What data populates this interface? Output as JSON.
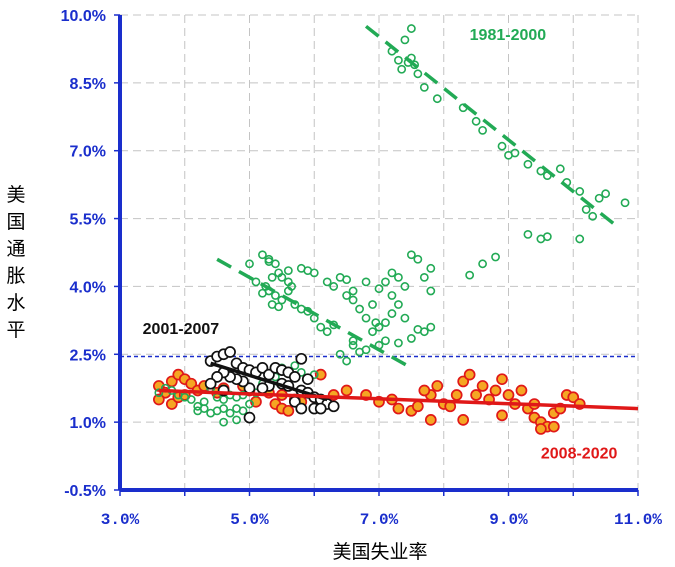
{
  "chart_data": {
    "type": "scatter",
    "xlabel": "美国失业率",
    "ylabel": "美国通胀水平",
    "xlim": [
      3.0,
      11.0
    ],
    "ylim": [
      -0.5,
      10.0
    ],
    "x_ticks": [
      "3.0%",
      "5.0%",
      "7.0%",
      "9.0%",
      "11.0%"
    ],
    "y_ticks": [
      "-0.5%",
      "1.0%",
      "2.5%",
      "4.0%",
      "5.5%",
      "7.0%",
      "8.5%",
      "10.0%"
    ],
    "grid": true,
    "reference_line": {
      "y": 2.45,
      "style": "dashed",
      "color": "#1a2ecc"
    },
    "colors": {
      "axis": "#1a2ecc",
      "green": "#22aa55",
      "black": "#111111",
      "red": "#e01818",
      "orange": "#f5a623"
    },
    "series": [
      {
        "name": "1981-2000",
        "color": "#22aa55",
        "points": [
          [
            7.2,
            9.2
          ],
          [
            7.4,
            9.45
          ],
          [
            7.5,
            9.7
          ],
          [
            7.3,
            9.0
          ],
          [
            7.45,
            8.95
          ],
          [
            7.55,
            8.9
          ],
          [
            7.6,
            8.7
          ],
          [
            7.7,
            8.4
          ],
          [
            7.35,
            8.8
          ],
          [
            7.5,
            9.05
          ],
          [
            7.9,
            8.15
          ],
          [
            8.3,
            7.95
          ],
          [
            8.5,
            7.65
          ],
          [
            8.6,
            7.45
          ],
          [
            8.9,
            7.1
          ],
          [
            9.0,
            6.9
          ],
          [
            9.1,
            6.95
          ],
          [
            9.3,
            6.7
          ],
          [
            9.5,
            6.55
          ],
          [
            9.6,
            6.45
          ],
          [
            9.8,
            6.6
          ],
          [
            9.9,
            6.3
          ],
          [
            10.1,
            6.1
          ],
          [
            10.2,
            5.7
          ],
          [
            10.3,
            5.55
          ],
          [
            10.4,
            5.95
          ],
          [
            10.5,
            6.05
          ],
          [
            10.8,
            5.85
          ],
          [
            10.1,
            5.05
          ],
          [
            9.5,
            5.05
          ],
          [
            9.6,
            5.1
          ],
          [
            9.3,
            5.15
          ],
          [
            8.8,
            4.65
          ],
          [
            8.6,
            4.5
          ],
          [
            8.4,
            4.25
          ],
          [
            7.8,
            4.4
          ],
          [
            7.6,
            4.6
          ],
          [
            7.5,
            4.7
          ],
          [
            7.8,
            3.9
          ],
          [
            7.7,
            4.2
          ],
          [
            7.2,
            4.3
          ],
          [
            7.3,
            4.2
          ],
          [
            7.4,
            4.0
          ],
          [
            7.1,
            4.1
          ],
          [
            7.0,
            3.95
          ],
          [
            7.2,
            3.8
          ],
          [
            7.3,
            3.6
          ],
          [
            7.4,
            3.3
          ],
          [
            7.2,
            3.4
          ],
          [
            7.1,
            3.2
          ],
          [
            7.0,
            3.1
          ],
          [
            6.9,
            3.0
          ],
          [
            6.8,
            3.3
          ],
          [
            6.7,
            3.5
          ],
          [
            6.6,
            3.7
          ],
          [
            6.5,
            3.8
          ],
          [
            6.6,
            3.9
          ],
          [
            6.8,
            4.1
          ],
          [
            6.9,
            3.6
          ],
          [
            6.95,
            3.2
          ],
          [
            6.5,
            4.15
          ],
          [
            6.4,
            4.2
          ],
          [
            6.3,
            4.0
          ],
          [
            6.2,
            4.1
          ],
          [
            6.0,
            4.3
          ],
          [
            5.9,
            4.35
          ],
          [
            5.8,
            4.4
          ],
          [
            5.5,
            4.2
          ],
          [
            5.6,
            4.35
          ],
          [
            5.3,
            4.55
          ],
          [
            5.2,
            4.7
          ],
          [
            5.3,
            4.6
          ],
          [
            5.4,
            4.5
          ],
          [
            5.45,
            4.3
          ],
          [
            5.35,
            4.2
          ],
          [
            5.25,
            4.0
          ],
          [
            5.3,
            3.9
          ],
          [
            5.4,
            3.8
          ],
          [
            5.5,
            3.7
          ],
          [
            5.6,
            3.9
          ],
          [
            5.7,
            3.6
          ],
          [
            5.8,
            3.5
          ],
          [
            5.9,
            3.45
          ],
          [
            6.0,
            3.3
          ],
          [
            6.1,
            3.1
          ],
          [
            6.2,
            3.0
          ],
          [
            6.3,
            3.15
          ],
          [
            5.1,
            4.1
          ],
          [
            5.0,
            4.5
          ],
          [
            5.2,
            3.85
          ],
          [
            5.35,
            3.6
          ],
          [
            5.45,
            3.55
          ],
          [
            5.6,
            4.1
          ],
          [
            5.65,
            4.0
          ],
          [
            6.6,
            2.8
          ],
          [
            6.8,
            2.6
          ],
          [
            7.0,
            2.7
          ],
          [
            7.1,
            2.8
          ],
          [
            7.3,
            2.75
          ],
          [
            7.5,
            2.85
          ],
          [
            7.6,
            3.05
          ],
          [
            7.7,
            3.0
          ],
          [
            7.8,
            3.1
          ],
          [
            6.5,
            2.35
          ],
          [
            6.4,
            2.5
          ],
          [
            6.7,
            2.55
          ],
          [
            6.6,
            2.7
          ],
          [
            5.5,
            2.2
          ],
          [
            5.7,
            2.25
          ],
          [
            5.8,
            2.1
          ],
          [
            6.0,
            2.05
          ],
          [
            4.4,
            1.75
          ],
          [
            4.5,
            1.55
          ],
          [
            4.6,
            1.5
          ],
          [
            4.7,
            1.6
          ],
          [
            4.8,
            1.55
          ],
          [
            4.9,
            1.6
          ],
          [
            5.0,
            1.7
          ],
          [
            5.1,
            1.65
          ],
          [
            4.3,
            1.45
          ],
          [
            4.2,
            1.35
          ],
          [
            4.1,
            1.5
          ],
          [
            4.0,
            1.55
          ],
          [
            3.9,
            1.6
          ],
          [
            3.8,
            1.7
          ],
          [
            3.7,
            1.75
          ],
          [
            3.6,
            1.65
          ],
          [
            4.5,
            1.25
          ],
          [
            4.6,
            1.3
          ],
          [
            4.7,
            1.2
          ],
          [
            4.8,
            1.3
          ],
          [
            4.9,
            1.25
          ],
          [
            5.0,
            1.4
          ],
          [
            4.4,
            1.2
          ],
          [
            4.3,
            1.3
          ],
          [
            4.2,
            1.25
          ],
          [
            4.6,
            1.0
          ],
          [
            4.8,
            1.05
          ],
          [
            5.2,
            1.85
          ],
          [
            5.4,
            2.0
          ],
          [
            5.6,
            2.1
          ]
        ]
      },
      {
        "name": "2001-2007",
        "color": "#111111",
        "points": [
          [
            4.4,
            2.35
          ],
          [
            4.5,
            2.45
          ],
          [
            4.6,
            2.5
          ],
          [
            4.7,
            2.55
          ],
          [
            4.8,
            2.3
          ],
          [
            4.9,
            2.2
          ],
          [
            5.0,
            2.15
          ],
          [
            5.1,
            2.1
          ],
          [
            5.2,
            2.2
          ],
          [
            5.3,
            2.05
          ],
          [
            5.4,
            2.2
          ],
          [
            5.5,
            2.15
          ],
          [
            5.6,
            2.1
          ],
          [
            5.7,
            2.0
          ],
          [
            5.8,
            2.4
          ],
          [
            5.9,
            1.95
          ],
          [
            5.5,
            1.85
          ],
          [
            5.6,
            1.8
          ],
          [
            5.3,
            1.8
          ],
          [
            5.2,
            1.75
          ],
          [
            5.0,
            1.75
          ],
          [
            4.9,
            1.9
          ],
          [
            4.8,
            1.95
          ],
          [
            4.7,
            2.0
          ],
          [
            4.6,
            2.1
          ],
          [
            4.5,
            2.0
          ],
          [
            5.8,
            1.7
          ],
          [
            5.9,
            1.65
          ],
          [
            6.0,
            1.55
          ],
          [
            6.1,
            1.5
          ],
          [
            6.2,
            1.4
          ],
          [
            6.3,
            1.35
          ],
          [
            5.7,
            1.45
          ],
          [
            5.8,
            1.3
          ],
          [
            6.0,
            1.3
          ],
          [
            6.1,
            1.3
          ],
          [
            5.0,
            1.1
          ],
          [
            4.4,
            1.85
          ],
          [
            4.6,
            1.7
          ]
        ]
      },
      {
        "name": "2008-2020",
        "color": "#e01818",
        "points": [
          [
            3.6,
            1.8
          ],
          [
            3.7,
            1.65
          ],
          [
            3.8,
            1.9
          ],
          [
            3.9,
            2.05
          ],
          [
            4.0,
            1.95
          ],
          [
            4.1,
            1.85
          ],
          [
            3.6,
            1.5
          ],
          [
            3.8,
            1.4
          ],
          [
            3.9,
            1.55
          ],
          [
            4.0,
            1.6
          ],
          [
            4.2,
            1.7
          ],
          [
            4.3,
            1.8
          ],
          [
            4.5,
            1.65
          ],
          [
            4.6,
            1.75
          ],
          [
            4.9,
            1.8
          ],
          [
            5.0,
            1.7
          ],
          [
            5.3,
            1.65
          ],
          [
            5.4,
            1.4
          ],
          [
            5.5,
            1.3
          ],
          [
            5.6,
            1.25
          ],
          [
            5.8,
            1.45
          ],
          [
            6.0,
            1.55
          ],
          [
            6.1,
            2.05
          ],
          [
            6.3,
            1.6
          ],
          [
            6.5,
            1.7
          ],
          [
            6.8,
            1.6
          ],
          [
            7.0,
            1.45
          ],
          [
            7.2,
            1.5
          ],
          [
            7.3,
            1.3
          ],
          [
            7.5,
            1.25
          ],
          [
            7.6,
            1.35
          ],
          [
            7.8,
            1.6
          ],
          [
            7.9,
            1.8
          ],
          [
            7.7,
            1.7
          ],
          [
            8.0,
            1.4
          ],
          [
            8.1,
            1.35
          ],
          [
            8.2,
            1.6
          ],
          [
            8.3,
            1.9
          ],
          [
            8.4,
            2.05
          ],
          [
            8.5,
            1.6
          ],
          [
            8.6,
            1.8
          ],
          [
            8.7,
            1.5
          ],
          [
            8.8,
            1.7
          ],
          [
            8.9,
            1.95
          ],
          [
            9.0,
            1.6
          ],
          [
            9.1,
            1.4
          ],
          [
            9.2,
            1.7
          ],
          [
            9.3,
            1.3
          ],
          [
            9.4,
            1.1
          ],
          [
            9.5,
            1.0
          ],
          [
            9.6,
            0.9
          ],
          [
            9.7,
            1.2
          ],
          [
            9.8,
            1.3
          ],
          [
            9.9,
            1.6
          ],
          [
            10.0,
            1.55
          ],
          [
            10.1,
            1.4
          ],
          [
            9.7,
            0.9
          ],
          [
            9.5,
            0.85
          ],
          [
            9.4,
            1.4
          ],
          [
            8.9,
            1.15
          ],
          [
            7.8,
            1.05
          ],
          [
            8.3,
            1.05
          ],
          [
            5.5,
            1.6
          ],
          [
            5.7,
            1.5
          ],
          [
            5.1,
            1.45
          ]
        ]
      }
    ],
    "trendlines": [
      {
        "series": "1981-2000",
        "style": "dashed",
        "color": "#22aa55",
        "from": [
          6.8,
          9.75
        ],
        "to": [
          10.7,
          5.3
        ]
      },
      {
        "series": "1981-2000",
        "style": "dashed",
        "color": "#22aa55",
        "from": [
          4.5,
          4.6
        ],
        "to": [
          7.5,
          2.2
        ]
      },
      {
        "series": "2001-2007",
        "style": "solid",
        "color": "#111111",
        "from": [
          4.4,
          2.3
        ],
        "to": [
          6.2,
          1.5
        ]
      },
      {
        "series": "2008-2020",
        "style": "solid",
        "color": "#e01818",
        "from": [
          3.6,
          1.7
        ],
        "to": [
          11.0,
          1.3
        ]
      }
    ],
    "annotations": [
      {
        "text": "1981-2000",
        "color": "#22aa55",
        "at": [
          8.4,
          9.45
        ]
      },
      {
        "text": "2001-2007",
        "color": "#111111",
        "at": [
          3.35,
          2.95
        ]
      },
      {
        "text": "2008-2020",
        "color": "#e01818",
        "at": [
          9.5,
          0.2
        ]
      }
    ]
  }
}
